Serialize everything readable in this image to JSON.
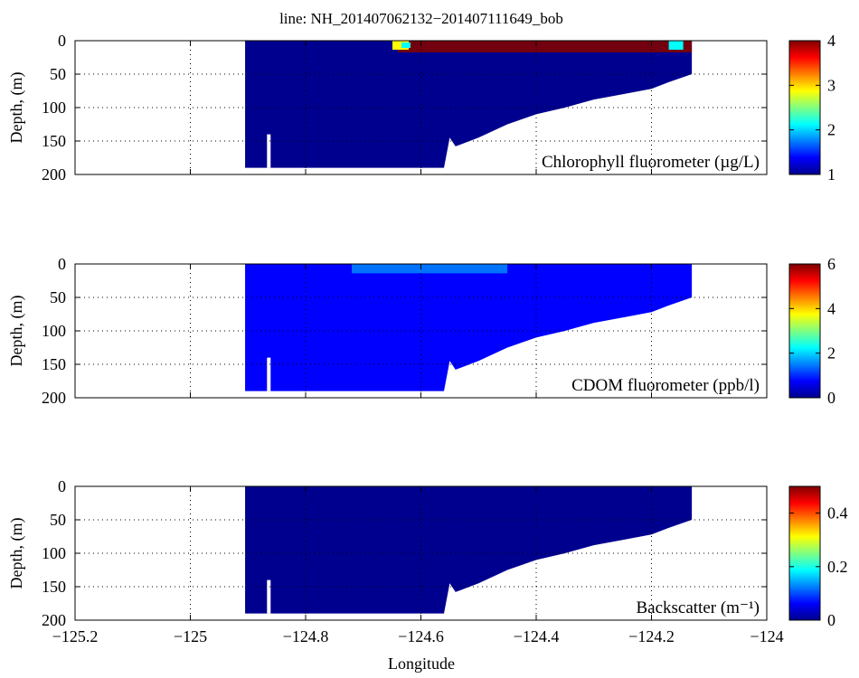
{
  "title": "line: NH_201407062132−201407111649_bob",
  "xlabel": "Longitude",
  "colors": {
    "field": "#00008f",
    "grid": "#000000",
    "colormap": [
      "#00008f",
      "#0000ff",
      "#0080ff",
      "#00ffff",
      "#80ff80",
      "#ffff00",
      "#ff8000",
      "#ff0000",
      "#800000"
    ]
  },
  "chart_data": [
    {
      "type": "heatmap",
      "label": "Chlorophyll fluorometer (µg/L)",
      "xlabel": "",
      "ylabel": "Depth, (m)",
      "xlim": [
        -125.2,
        -124
      ],
      "ylim": [
        0,
        200
      ],
      "y_reversed": true,
      "x_ticks": [
        -125.2,
        -125,
        -124.8,
        -124.6,
        -124.4,
        -124.2,
        -124
      ],
      "y_ticks": [
        0,
        50,
        100,
        150,
        200
      ],
      "grid": true,
      "colorbar": {
        "range": [
          1,
          4
        ],
        "ticks": [
          "1",
          "2",
          "3",
          "4"
        ]
      },
      "field_value": 1,
      "bottom_profile": {
        "x": [
          -124.905,
          -124.56,
          -124.55,
          -124.54,
          -124.5,
          -124.45,
          -124.4,
          -124.35,
          -124.3,
          -124.25,
          -124.2,
          -124.17,
          -124.13
        ],
        "depth": [
          190,
          190,
          145,
          158,
          145,
          125,
          110,
          100,
          88,
          80,
          72,
          62,
          50
        ]
      },
      "surface_feature": {
        "x_range": [
          -124.64,
          -124.13
        ],
        "depth_range": [
          0,
          25
        ],
        "value": 4
      }
    },
    {
      "type": "heatmap",
      "label": "CDOM fluorometer (ppb/l)",
      "xlabel": "",
      "ylabel": "Depth, (m)",
      "xlim": [
        -125.2,
        -124
      ],
      "ylim": [
        0,
        200
      ],
      "y_reversed": true,
      "x_ticks": [
        -125.2,
        -125,
        -124.8,
        -124.6,
        -124.4,
        -124.2,
        -124
      ],
      "y_ticks": [
        0,
        50,
        100,
        150,
        200
      ],
      "grid": true,
      "colorbar": {
        "range": [
          0,
          6
        ],
        "ticks": [
          "0",
          "2",
          "4",
          "6"
        ]
      },
      "field_value": 0.5,
      "bottom_profile": {
        "x": [
          -124.905,
          -124.56,
          -124.55,
          -124.54,
          -124.5,
          -124.45,
          -124.4,
          -124.35,
          -124.3,
          -124.25,
          -124.2,
          -124.17,
          -124.13
        ],
        "depth": [
          190,
          190,
          145,
          158,
          145,
          125,
          110,
          100,
          88,
          80,
          72,
          62,
          50
        ]
      },
      "surface_feature": {
        "x_range": [
          -124.72,
          -124.45
        ],
        "depth_range": [
          0,
          20
        ],
        "value": 1.5
      }
    },
    {
      "type": "heatmap",
      "label": "Backscatter (m⁻¹)",
      "xlabel": "Longitude",
      "ylabel": "Depth, (m)",
      "xlim": [
        -125.2,
        -124
      ],
      "ylim": [
        0,
        200
      ],
      "y_reversed": true,
      "x_ticks": [
        -125.2,
        -125,
        -124.8,
        -124.6,
        -124.4,
        -124.2,
        -124
      ],
      "y_ticks": [
        0,
        50,
        100,
        150,
        200
      ],
      "grid": true,
      "colorbar": {
        "range": [
          0,
          0.5
        ],
        "ticks": [
          "0",
          "0.2",
          "0.4"
        ]
      },
      "field_value": 0.02,
      "bottom_profile": {
        "x": [
          -124.905,
          -124.56,
          -124.55,
          -124.54,
          -124.5,
          -124.45,
          -124.4,
          -124.35,
          -124.3,
          -124.25,
          -124.2,
          -124.17,
          -124.13
        ],
        "depth": [
          190,
          190,
          145,
          158,
          145,
          125,
          110,
          100,
          88,
          80,
          72,
          62,
          50
        ]
      },
      "surface_feature": null
    }
  ]
}
